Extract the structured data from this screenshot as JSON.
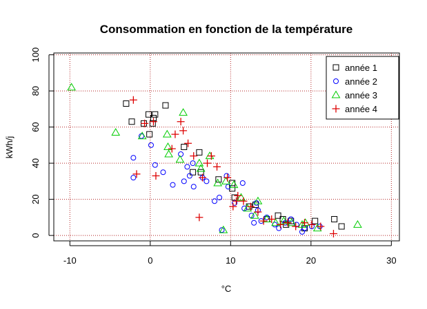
{
  "chart_data": {
    "type": "scatter",
    "title": "Consommation en fonction de la température",
    "xlabel": "°C",
    "ylabel": "kWh/j",
    "xlim": [
      -12,
      31
    ],
    "ylim": [
      -3,
      101
    ],
    "xticks": [
      -10,
      0,
      10,
      20,
      30
    ],
    "yticks": [
      0,
      20,
      40,
      60,
      80,
      100
    ],
    "grid": true,
    "grid_color": "#b22222",
    "legend_position": "top-right",
    "series": [
      {
        "name": "année 1",
        "marker": "square",
        "color": "#000000",
        "points": [
          [
            -3,
            73
          ],
          [
            -2.3,
            63
          ],
          [
            -0.8,
            62
          ],
          [
            -0.2,
            67
          ],
          [
            0.3,
            62
          ],
          [
            0.6,
            67
          ],
          [
            0.4,
            65
          ],
          [
            -0.1,
            56
          ],
          [
            1.9,
            72
          ],
          [
            4.2,
            49
          ],
          [
            5.3,
            35
          ],
          [
            6.3,
            35
          ],
          [
            6.1,
            46
          ],
          [
            8.5,
            31
          ],
          [
            10.2,
            29
          ],
          [
            10.2,
            26
          ],
          [
            10.5,
            21
          ],
          [
            12.3,
            16
          ],
          [
            13.1,
            17
          ],
          [
            14.5,
            9
          ],
          [
            15.9,
            11
          ],
          [
            16.5,
            9
          ],
          [
            16.9,
            6
          ],
          [
            17.5,
            8
          ],
          [
            19.2,
            4
          ],
          [
            20.5,
            8
          ],
          [
            22.9,
            9
          ],
          [
            23.8,
            5
          ]
        ]
      },
      {
        "name": "année 2",
        "marker": "circle",
        "color": "#0000ff",
        "points": [
          [
            -2.1,
            43
          ],
          [
            -2.1,
            32
          ],
          [
            -1.1,
            55
          ],
          [
            0.1,
            50
          ],
          [
            0.6,
            39
          ],
          [
            1.6,
            35
          ],
          [
            2.8,
            28
          ],
          [
            3.8,
            45
          ],
          [
            4.2,
            30
          ],
          [
            4.6,
            38
          ],
          [
            4.9,
            33
          ],
          [
            5.3,
            40
          ],
          [
            5.4,
            27
          ],
          [
            6.5,
            32
          ],
          [
            7.0,
            30
          ],
          [
            8.0,
            19
          ],
          [
            8.6,
            21
          ],
          [
            8.9,
            3
          ],
          [
            9.5,
            33
          ],
          [
            10.5,
            18
          ],
          [
            11.5,
            29
          ],
          [
            11.7,
            15
          ],
          [
            12.6,
            11
          ],
          [
            12.9,
            7
          ],
          [
            13.4,
            14
          ],
          [
            13.8,
            8
          ],
          [
            14.5,
            10
          ],
          [
            15.5,
            6
          ],
          [
            16.0,
            4
          ],
          [
            16.8,
            7
          ],
          [
            17.5,
            9
          ],
          [
            18.2,
            6
          ],
          [
            18.9,
            2
          ],
          [
            19.2,
            4
          ],
          [
            20.1,
            5
          ],
          [
            21.1,
            5
          ],
          [
            13.2,
            18
          ],
          [
            9.7,
            27
          ]
        ]
      },
      {
        "name": "année 3",
        "marker": "triangle",
        "color": "#00cc00",
        "points": [
          [
            -9.8,
            82
          ],
          [
            -4.3,
            57
          ],
          [
            -1.0,
            55
          ],
          [
            2.1,
            56
          ],
          [
            2.2,
            49
          ],
          [
            2.3,
            45
          ],
          [
            4.1,
            68
          ],
          [
            3.7,
            42
          ],
          [
            6.1,
            40
          ],
          [
            6.3,
            37
          ],
          [
            7.4,
            44
          ],
          [
            8.4,
            29
          ],
          [
            9.1,
            3
          ],
          [
            9.4,
            30
          ],
          [
            10.4,
            28
          ],
          [
            11.3,
            21
          ],
          [
            12.1,
            15
          ],
          [
            13.0,
            11
          ],
          [
            13.4,
            19
          ],
          [
            14.5,
            9
          ],
          [
            15.6,
            7
          ],
          [
            16.6,
            8
          ],
          [
            17.6,
            7
          ],
          [
            18.9,
            6
          ],
          [
            19.3,
            7
          ],
          [
            20.8,
            4
          ],
          [
            25.8,
            6
          ]
        ]
      },
      {
        "name": "année 4",
        "marker": "plus",
        "color": "#dd0000",
        "points": [
          [
            -2.1,
            75
          ],
          [
            -1.7,
            34
          ],
          [
            -0.7,
            62
          ],
          [
            0.4,
            63
          ],
          [
            0.7,
            33
          ],
          [
            2.7,
            48
          ],
          [
            3.1,
            56
          ],
          [
            3.8,
            63
          ],
          [
            4.1,
            58
          ],
          [
            4.7,
            51
          ],
          [
            5.4,
            44
          ],
          [
            6.1,
            10
          ],
          [
            6.5,
            32
          ],
          [
            7.1,
            40
          ],
          [
            7.6,
            44
          ],
          [
            8.3,
            38
          ],
          [
            9.6,
            32
          ],
          [
            10.3,
            16
          ],
          [
            10.9,
            22
          ],
          [
            11.6,
            19
          ],
          [
            12.5,
            16
          ],
          [
            13.4,
            13
          ],
          [
            14.1,
            8
          ],
          [
            15.1,
            9
          ],
          [
            16.2,
            6
          ],
          [
            17.1,
            7
          ],
          [
            18.1,
            5
          ],
          [
            19.2,
            7
          ],
          [
            20.1,
            6
          ],
          [
            21.2,
            5
          ],
          [
            22.8,
            1
          ],
          [
            10.7,
            19
          ]
        ]
      }
    ]
  }
}
